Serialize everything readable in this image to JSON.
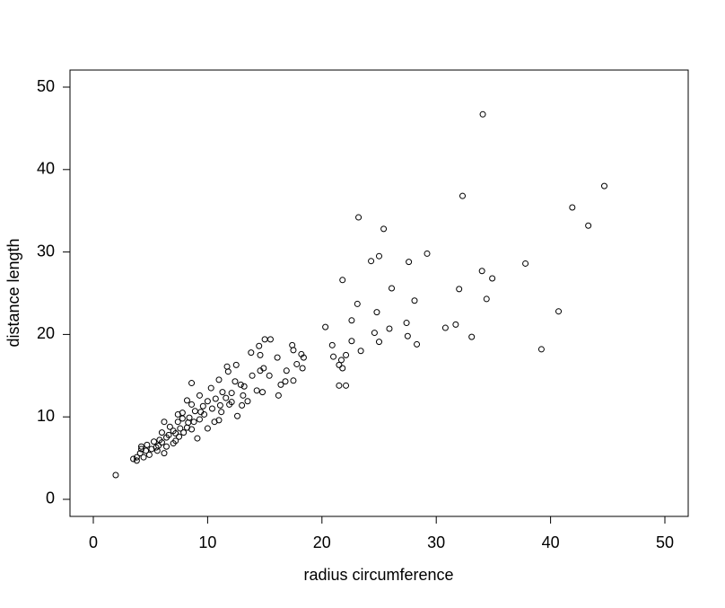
{
  "chart_data": {
    "type": "scatter",
    "xlabel": "radius circumference",
    "ylabel": "distance length",
    "color": "#000000",
    "xlim": [
      -2.04,
      52.04
    ],
    "ylim": [
      -2.07,
      52.07
    ],
    "xticks": [
      0,
      10,
      20,
      30,
      40,
      50
    ],
    "yticks": [
      0,
      10,
      20,
      30,
      40,
      50
    ],
    "x": [
      1.96,
      34.07,
      44.7,
      41.9,
      43.3,
      32.3,
      23.2,
      25.4,
      29.2,
      25.0,
      24.3,
      27.6,
      37.8,
      34.0,
      34.9,
      21.8,
      32.0,
      26.1,
      34.4,
      28.1,
      23.1,
      24.8,
      40.7,
      25.9,
      22.6,
      27.4,
      31.7,
      30.8,
      20.3,
      24.6,
      27.5,
      33.1,
      22.6,
      25.0,
      28.3,
      20.9,
      39.2,
      23.4,
      22.1,
      21.0,
      21.7,
      21.5,
      21.8,
      21.5,
      22.1,
      15.0,
      15.5,
      14.5,
      17.4,
      17.5,
      13.8,
      14.6,
      16.1,
      18.2,
      18.4,
      17.8,
      11.7,
      12.5,
      16.9,
      18.3,
      11.8,
      13.9,
      14.6,
      14.9,
      15.4,
      10.99,
      12.4,
      12.9,
      13.2,
      16.4,
      16.8,
      17.5,
      14.3,
      14.8,
      16.2,
      10.3,
      11.3,
      12.1,
      13.1,
      13.5,
      13.0,
      9.3,
      10.0,
      10.7,
      11.6,
      8.6,
      8.2,
      8.6,
      9.6,
      10.4,
      11.1,
      11.9,
      12.6,
      11.2,
      8.9,
      7.8,
      7.4,
      10.6,
      9.3,
      8.4,
      7.6,
      10.0,
      9.1,
      7.9,
      7.0,
      6.4,
      6.0,
      5.8,
      7.2,
      6.7,
      6.2,
      5.3,
      5.1,
      5.7,
      4.7,
      4.2,
      4.6,
      4.1,
      3.8,
      3.5,
      3.8,
      4.4,
      4.9,
      5.6,
      6.2,
      6.4,
      7.0,
      7.5,
      8.2,
      8.8,
      9.7,
      12.1,
      7.4,
      8.3,
      8.6,
      9.4,
      10.99,
      7.2,
      6.6,
      6.0,
      5.5,
      7.8,
      4.2
    ],
    "y": [
      2.94,
      46.7,
      38.0,
      35.4,
      33.2,
      36.8,
      34.2,
      32.8,
      29.8,
      29.5,
      28.9,
      28.8,
      28.6,
      27.7,
      26.8,
      26.6,
      25.5,
      25.6,
      24.3,
      24.1,
      23.7,
      22.7,
      22.8,
      20.7,
      21.7,
      21.4,
      21.2,
      20.8,
      20.9,
      20.2,
      19.8,
      19.7,
      19.2,
      19.1,
      18.8,
      18.7,
      18.2,
      18.0,
      17.5,
      17.3,
      16.9,
      16.3,
      15.9,
      13.8,
      13.8,
      19.4,
      19.4,
      18.6,
      18.7,
      18.1,
      17.8,
      17.5,
      17.2,
      17.6,
      17.2,
      16.4,
      16.1,
      16.3,
      15.6,
      15.9,
      15.5,
      15.0,
      15.6,
      15.9,
      15.0,
      14.5,
      14.3,
      13.9,
      13.7,
      13.9,
      14.3,
      14.4,
      13.2,
      13.0,
      12.6,
      13.5,
      13.0,
      12.9,
      12.6,
      11.9,
      11.4,
      12.6,
      11.9,
      12.2,
      12.3,
      14.1,
      12.0,
      11.5,
      11.3,
      11.0,
      11.4,
      11.5,
      10.1,
      10.6,
      10.7,
      10.5,
      9.4,
      9.4,
      9.7,
      9.9,
      8.6,
      8.6,
      7.4,
      8.1,
      8.3,
      7.5,
      8.1,
      7.2,
      7.1,
      8.8,
      9.4,
      7.0,
      6.1,
      6.5,
      6.6,
      6.4,
      5.9,
      5.6,
      5.1,
      4.9,
      4.7,
      5.1,
      5.4,
      5.9,
      5.6,
      6.4,
      6.8,
      7.6,
      8.7,
      9.4,
      10.3,
      11.8,
      10.3,
      9.3,
      8.5,
      10.6,
      9.6,
      8.0,
      7.8,
      6.9,
      6.3,
      9.8,
      6.1
    ]
  }
}
